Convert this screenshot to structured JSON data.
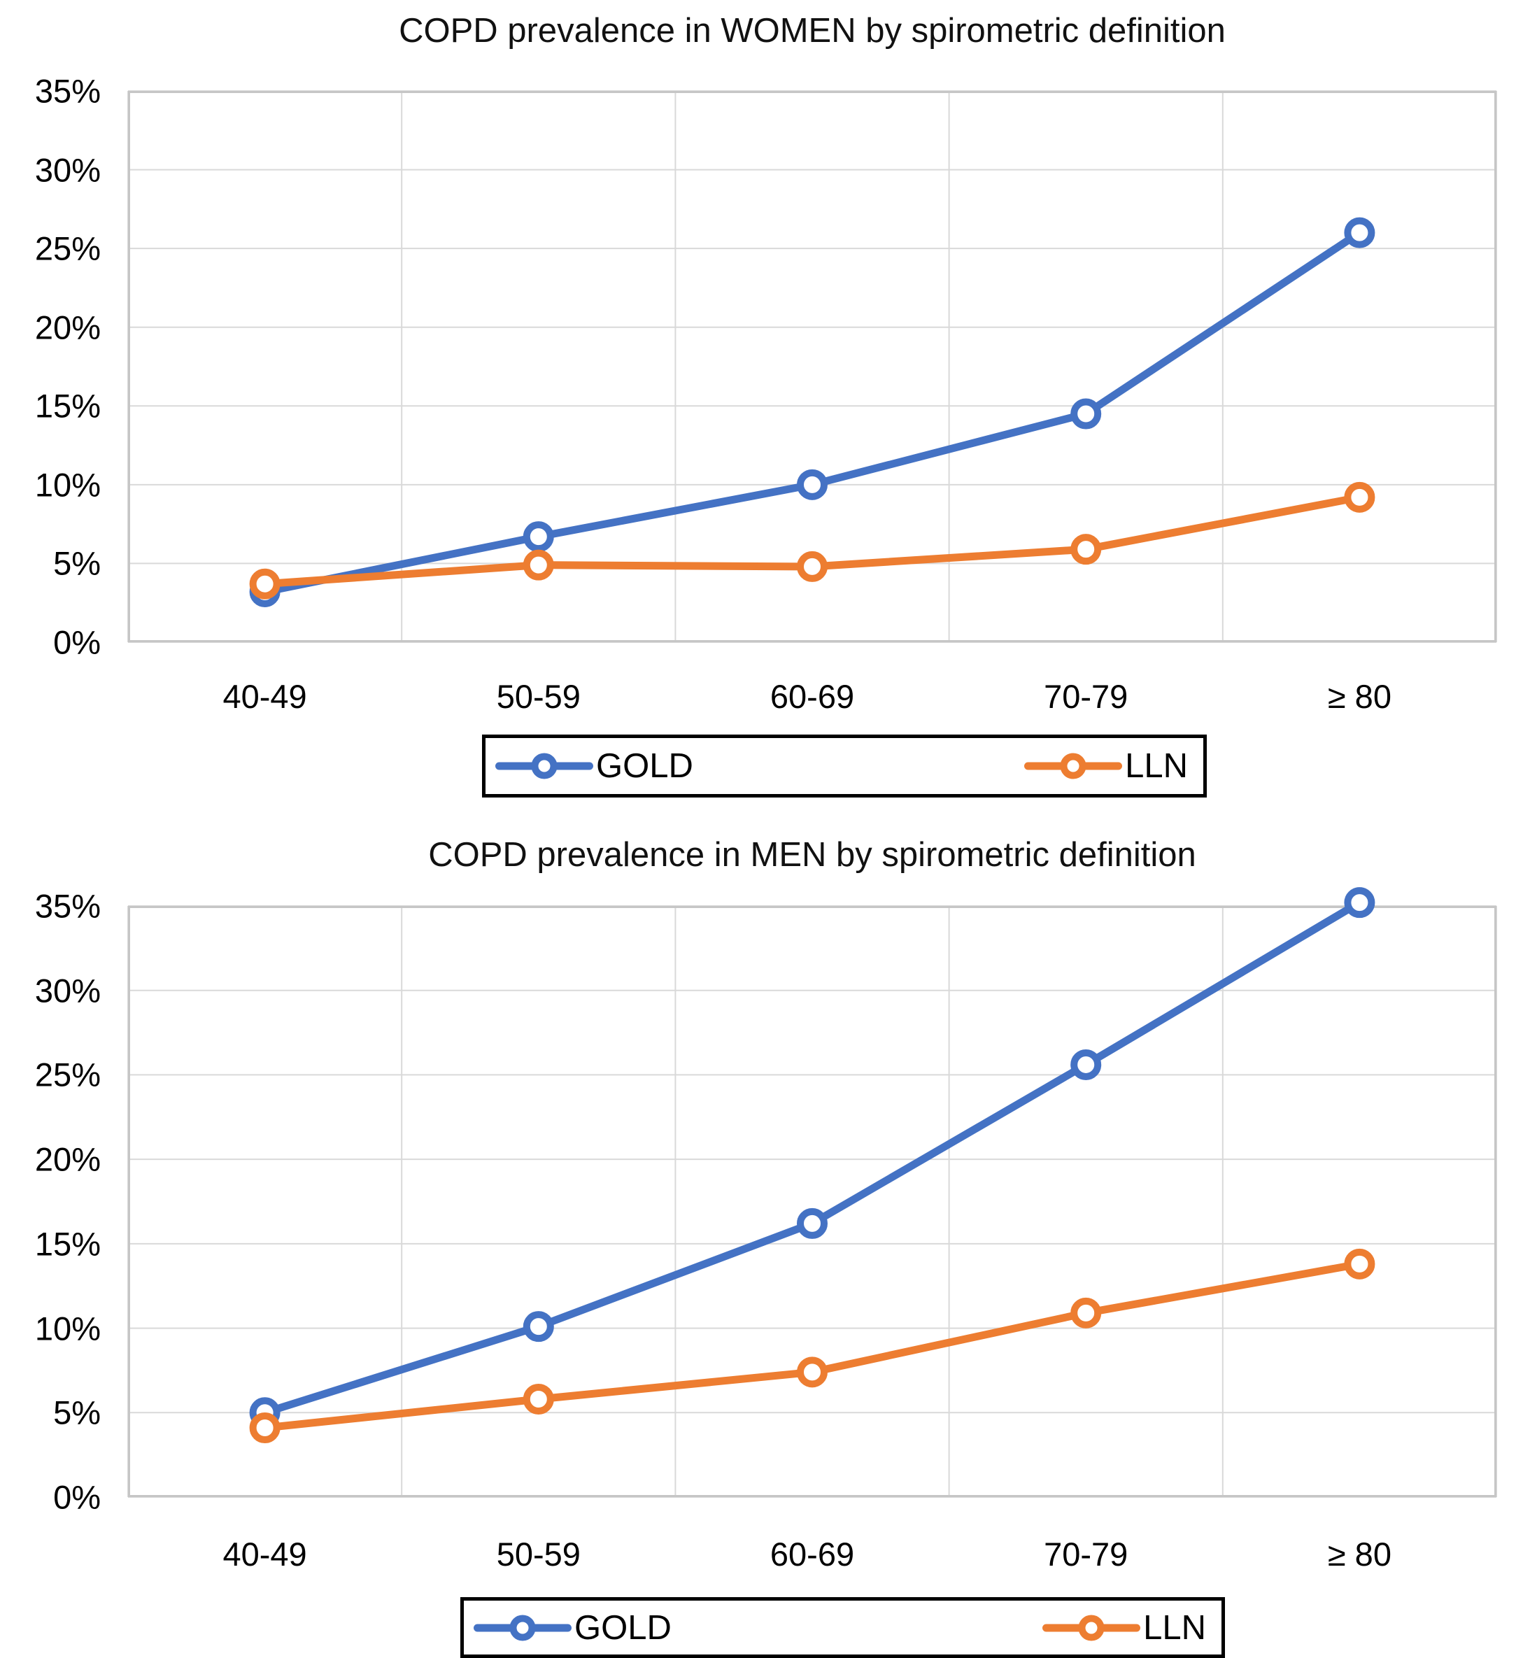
{
  "colors": {
    "gold_series": "#4472C4",
    "lln_series": "#ED7D31",
    "gridline": "#d9d9d9",
    "plot_border": "#c6c6c6",
    "legend_border": "#000000",
    "text": "#000000",
    "background": "#ffffff"
  },
  "chart_data": [
    {
      "type": "line",
      "title": "COPD prevalence in WOMEN by spirometric definition",
      "categories": [
        "40-49",
        "50-59",
        "60-69",
        "70-79",
        "≥ 80"
      ],
      "series": [
        {
          "name": "GOLD",
          "color": "#4472C4",
          "values": [
            3.2,
            6.7,
            10.0,
            14.5,
            26.0
          ]
        },
        {
          "name": "LLN",
          "color": "#ED7D31",
          "values": [
            3.7,
            4.9,
            4.8,
            5.9,
            9.2
          ]
        }
      ],
      "ylim": [
        0,
        35
      ],
      "y_tick_step": 5,
      "y_tick_labels": [
        "35%",
        "30%",
        "25%",
        "20%",
        "15%",
        "10%",
        "5%",
        "0%"
      ],
      "grid": "on",
      "legend_position": "bottom",
      "marker": "open-circle"
    },
    {
      "type": "line",
      "title": "COPD prevalence in MEN by spirometric definition",
      "categories": [
        "40-49",
        "50-59",
        "60-69",
        "70-79",
        "≥ 80"
      ],
      "series": [
        {
          "name": "GOLD",
          "color": "#4472C4",
          "values": [
            5.0,
            10.1,
            16.2,
            25.6,
            35.2
          ]
        },
        {
          "name": "LLN",
          "color": "#ED7D31",
          "values": [
            4.1,
            5.8,
            7.4,
            10.9,
            13.8
          ]
        }
      ],
      "ylim": [
        0,
        35
      ],
      "y_tick_step": 5,
      "y_tick_labels": [
        "35%",
        "30%",
        "25%",
        "20%",
        "15%",
        "10%",
        "5%",
        "0%"
      ],
      "grid": "on",
      "legend_position": "bottom",
      "marker": "open-circle"
    }
  ]
}
